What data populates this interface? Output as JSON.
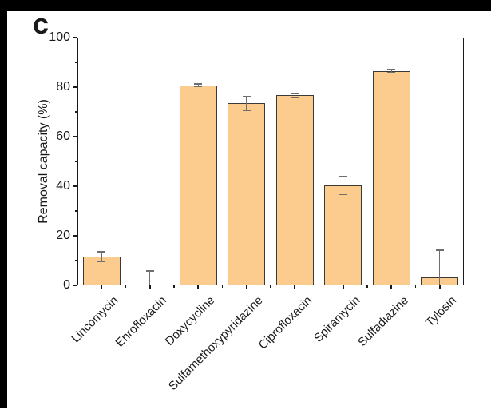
{
  "panel_label": "c",
  "colors": {
    "bar_fill": "#FCCB8E",
    "bar_border": "#3d3a36",
    "error_bar": "#6e6e6e",
    "axis": "#1a1a1a",
    "mat_frame": "#000000",
    "background": "#ffffff"
  },
  "chart_data": {
    "type": "bar",
    "title": "",
    "xlabel": "",
    "ylabel": "Removal capacity (%)",
    "ylim": [
      0,
      100
    ],
    "yticks_major": [
      0,
      20,
      40,
      60,
      80,
      100
    ],
    "yticks_minor": [
      10,
      30,
      50,
      70,
      90
    ],
    "grid": false,
    "legend": false,
    "categories": [
      "Lincomycin",
      "Enrofloxacin",
      "Doxycycline",
      "Sulfamethoxypyridazine",
      "Ciprofloxacin",
      "Spiramycin",
      "Sulfadiazine",
      "Tylosin"
    ],
    "values": [
      11.5,
      0.3,
      80.8,
      73.4,
      76.8,
      40.4,
      86.6,
      3.2
    ],
    "errors": [
      2.0,
      5.5,
      0.5,
      2.9,
      0.8,
      3.7,
      0.6,
      11.0
    ],
    "error_bars": true,
    "x_tick_rotation_deg": 45
  }
}
